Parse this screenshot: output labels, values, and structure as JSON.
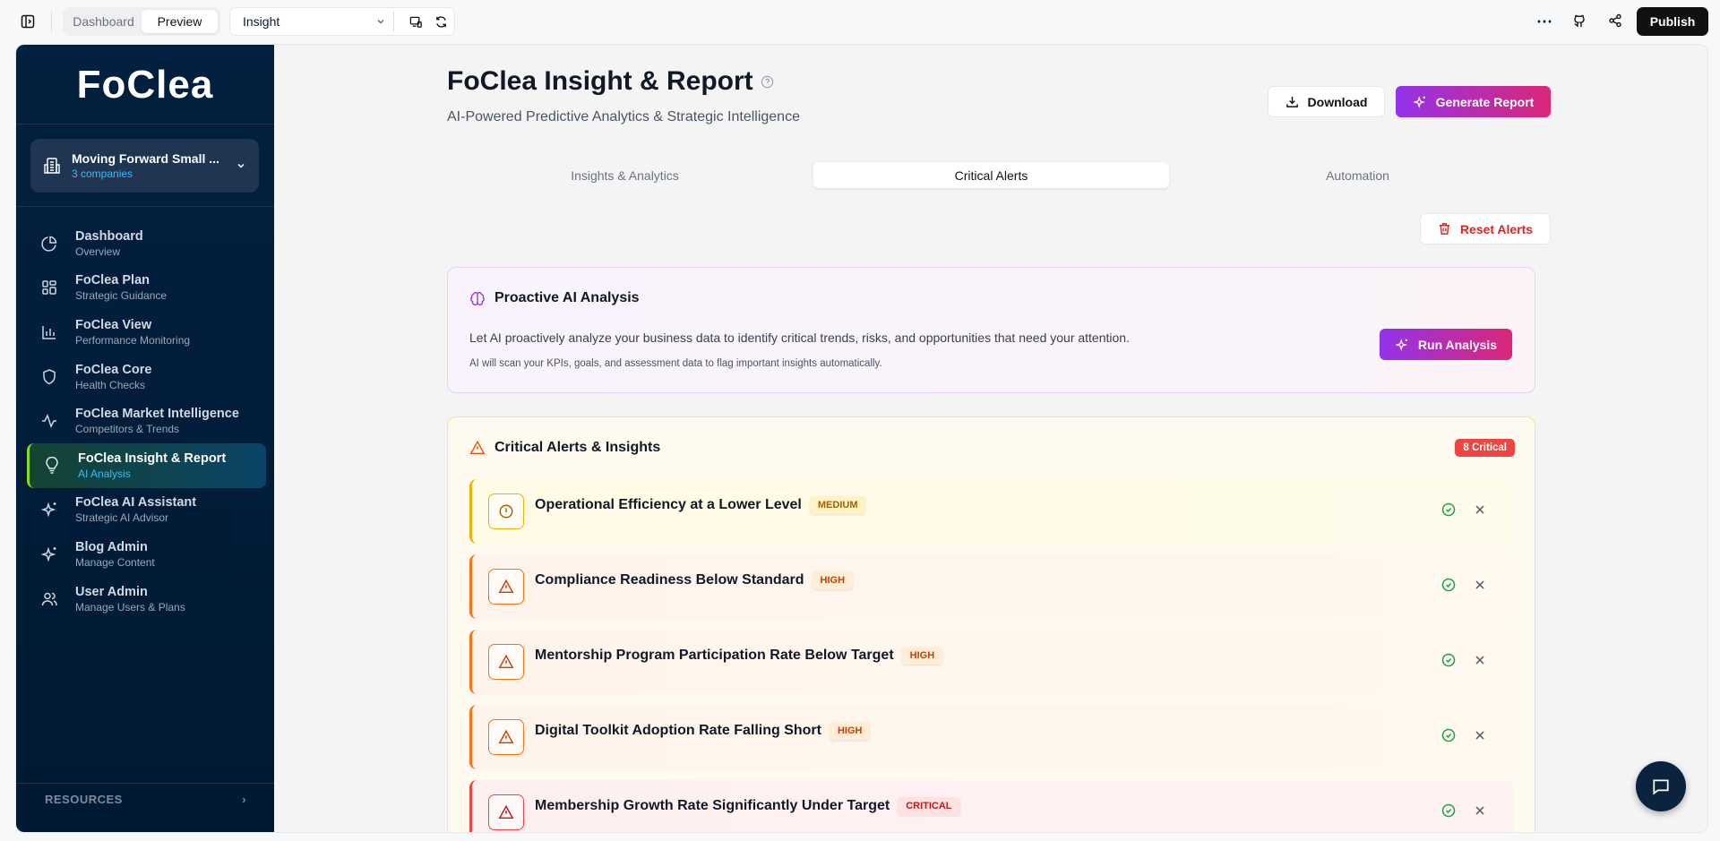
{
  "topbar": {
    "modes": [
      "Dashboard",
      "Preview"
    ],
    "active_mode": "Preview",
    "page_select": "Insight",
    "publish": "Publish"
  },
  "sidebar": {
    "logo": "FoClea",
    "company": {
      "name": "Moving Forward Small ...",
      "count": "3 companies"
    },
    "items": [
      {
        "title": "Dashboard",
        "sub": "Overview",
        "icon": "pie-chart-icon"
      },
      {
        "title": "FoClea Plan",
        "sub": "Strategic Guidance",
        "icon": "grid-icon"
      },
      {
        "title": "FoClea View",
        "sub": "Performance Monitoring",
        "icon": "bar-chart-icon"
      },
      {
        "title": "FoClea Core",
        "sub": "Health Checks",
        "icon": "shield-icon"
      },
      {
        "title": "FoClea Market Intelligence",
        "sub": "Competitors & Trends",
        "icon": "activity-icon"
      },
      {
        "title": "FoClea Insight & Report",
        "sub": "AI Analysis",
        "icon": "lightbulb-icon",
        "active": true
      },
      {
        "title": "FoClea AI Assistant",
        "sub": "Strategic AI Advisor",
        "icon": "sparkles-icon"
      },
      {
        "title": "Blog Admin",
        "sub": "Manage Content",
        "icon": "sparkles-icon"
      },
      {
        "title": "User Admin",
        "sub": "Manage Users & Plans",
        "icon": "users-icon"
      }
    ],
    "resources": "RESOURCES"
  },
  "header": {
    "title": "FoClea Insight & Report",
    "subtitle": "AI-Powered Predictive Analytics & Strategic Intelligence",
    "download": "Download",
    "generate": "Generate Report"
  },
  "tabs": [
    "Insights & Analytics",
    "Critical Alerts",
    "Automation"
  ],
  "active_tab": "Critical Alerts",
  "reset_alerts": "Reset Alerts",
  "proactive": {
    "title": "Proactive AI Analysis",
    "text": "Let AI proactively analyze your business data to identify critical trends, risks, and opportunities that need your attention.",
    "note": "AI will scan your KPIs, goals, and assessment data to flag important insights automatically.",
    "button": "Run Analysis"
  },
  "alerts": {
    "title": "Critical Alerts & Insights",
    "count_badge": "8 Critical",
    "items": [
      {
        "title": "Operational Efficiency at a Lower Level",
        "severity": "MEDIUM"
      },
      {
        "title": "Compliance Readiness Below Standard",
        "severity": "HIGH"
      },
      {
        "title": "Mentorship Program Participation Rate Below Target",
        "severity": "HIGH"
      },
      {
        "title": "Digital Toolkit Adoption Rate Falling Short",
        "severity": "HIGH"
      },
      {
        "title": "Membership Growth Rate Significantly Under Target",
        "severity": "CRITICAL"
      }
    ]
  },
  "colors": {
    "sidebar": "#02203f",
    "accent_gradient_start": "#9333ea",
    "accent_gradient_end": "#db2777",
    "active_bar": "#84e01a",
    "medium": "#eab308",
    "high": "#f97316",
    "critical": "#ef4444"
  }
}
